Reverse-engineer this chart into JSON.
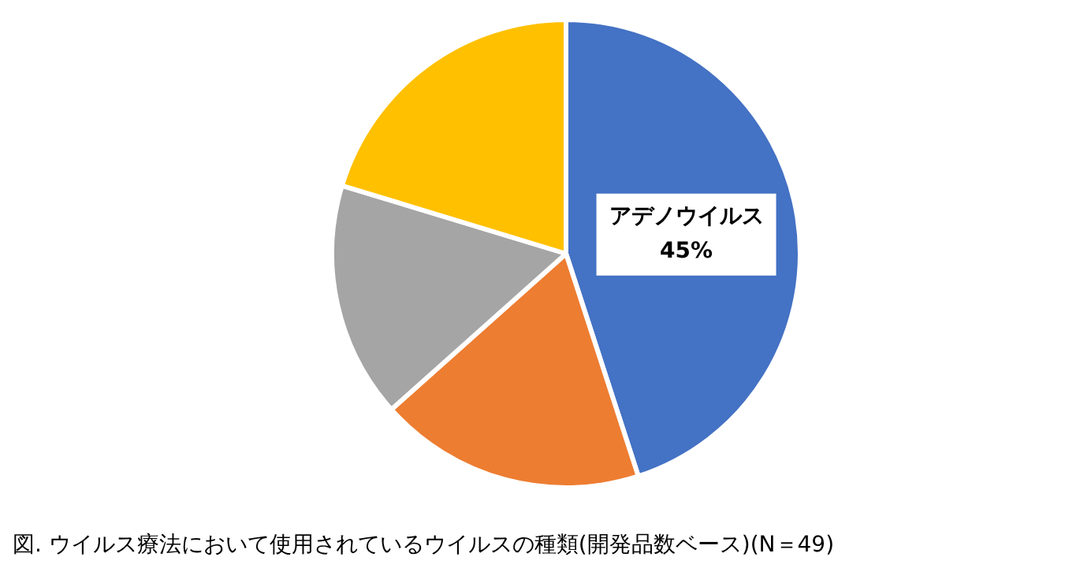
{
  "chart_data": {
    "type": "pie",
    "categories": [
      "アデノウイルス",
      null,
      null,
      null
    ],
    "values": [
      45,
      18.4,
      16.3,
      20.3
    ],
    "colors": [
      "#4472c4",
      "#ed7d31",
      "#a5a5a5",
      "#ffc000"
    ],
    "value_labels": [
      "45%",
      null,
      null,
      null
    ],
    "legend": false,
    "annotations": [
      "図. ウイルス療法において使用されているウイルスの種類(開発品数ベース)(N＝49)"
    ]
  }
}
